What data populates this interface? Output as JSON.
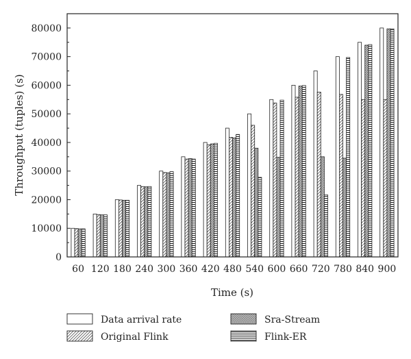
{
  "chart_data": {
    "type": "bar",
    "xlabel": "Time (s)",
    "ylabel": "Throughput (tuples) (s)",
    "categories": [
      "60",
      "120",
      "180",
      "240",
      "300",
      "360",
      "420",
      "480",
      "540",
      "600",
      "660",
      "720",
      "780",
      "840",
      "900"
    ],
    "ylim": [
      0,
      85000
    ],
    "yticks": [
      0,
      10000,
      20000,
      30000,
      40000,
      50000,
      60000,
      70000,
      80000
    ],
    "grid": false,
    "legend_position": "bottom",
    "series": [
      {
        "name": "Data arrival rate",
        "pattern": "plain",
        "values": [
          10000,
          15000,
          20000,
          25000,
          30000,
          35000,
          40000,
          45000,
          50000,
          55000,
          60000,
          65000,
          70000,
          75000,
          80000
        ]
      },
      {
        "name": "Original Flink",
        "pattern": "diagonal",
        "values": [
          9900,
          14800,
          19900,
          24600,
          29500,
          34200,
          39200,
          41800,
          46000,
          53800,
          55800,
          57600,
          56800,
          55000,
          55000
        ]
      },
      {
        "name": "Sra-Stream",
        "pattern": "crosshatch",
        "values": [
          9800,
          14700,
          19800,
          24500,
          29400,
          34400,
          39500,
          41600,
          38000,
          34800,
          59700,
          35000,
          34500,
          74000,
          79700
        ]
      },
      {
        "name": "Flink-ER",
        "pattern": "horizontal",
        "values": [
          9800,
          14700,
          19800,
          24600,
          29800,
          34200,
          39700,
          42800,
          27800,
          54800,
          59900,
          21700,
          69700,
          74200,
          79700
        ]
      }
    ]
  }
}
